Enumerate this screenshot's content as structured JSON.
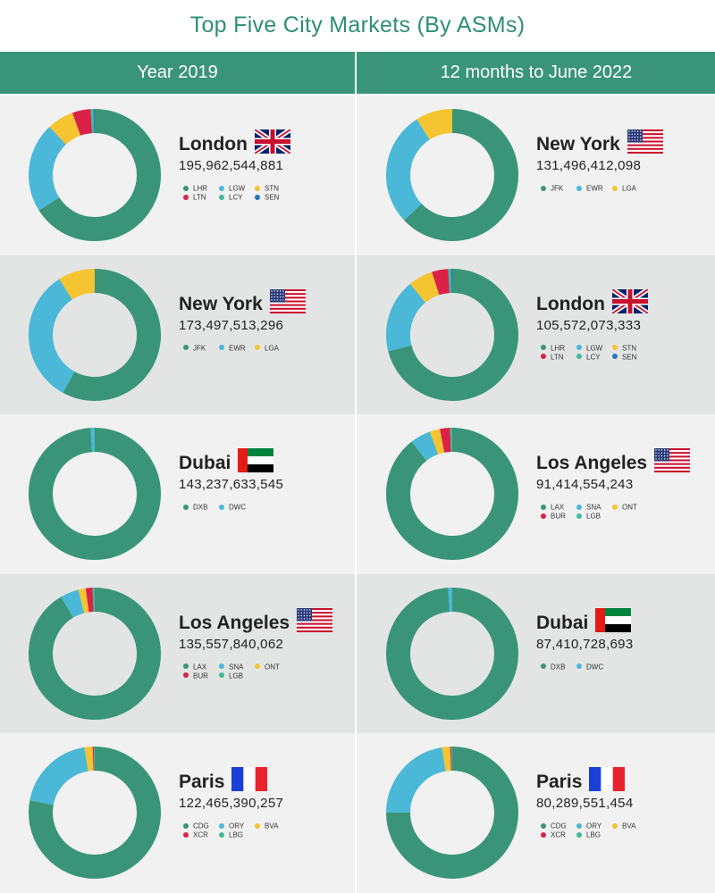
{
  "title": "Top Five City Markets (By ASMs)",
  "columns": [
    "Year 2019",
    "12 months to June 2022"
  ],
  "colors": {
    "header": "#3a9578",
    "title": "#2e8f73",
    "row_light": "#f0f1f0",
    "row_dark": "#e2e5e4",
    "green": "#3a9578",
    "blue": "#4ab8d6",
    "yellow": "#f4c431",
    "red": "#dc2147",
    "teal": "#41b8a0",
    "navy": "#2a76c2"
  },
  "chart_data": [
    {
      "type": "donut",
      "column": "Year 2019",
      "rank": 1,
      "city": "London",
      "flag": "uk",
      "total": "195,962,544,881",
      "segments": [
        {
          "label": "LHR",
          "value": 66.0,
          "color": "#3a9578"
        },
        {
          "label": "LGW",
          "value": 22.0,
          "color": "#4ab8d6"
        },
        {
          "label": "STN",
          "value": 6.5,
          "color": "#f4c431"
        },
        {
          "label": "LTN",
          "value": 4.5,
          "color": "#dc2147"
        },
        {
          "label": "LCY",
          "value": 0.7,
          "color": "#41b8a0"
        },
        {
          "label": "SEN",
          "value": 0.3,
          "color": "#2a76c2"
        }
      ]
    },
    {
      "type": "donut",
      "column": "Year 2019",
      "rank": 2,
      "city": "New York",
      "flag": "us",
      "total": "173,497,513,296",
      "segments": [
        {
          "label": "JFK",
          "value": 58.0,
          "color": "#3a9578"
        },
        {
          "label": "EWR",
          "value": 33.0,
          "color": "#4ab8d6"
        },
        {
          "label": "LGA",
          "value": 9.0,
          "color": "#f4c431"
        }
      ]
    },
    {
      "type": "donut",
      "column": "Year 2019",
      "rank": 3,
      "city": "Dubai",
      "flag": "uae",
      "total": "143,237,633,545",
      "segments": [
        {
          "label": "DXB",
          "value": 99.0,
          "color": "#3a9578"
        },
        {
          "label": "DWC",
          "value": 1.0,
          "color": "#4ab8d6"
        }
      ]
    },
    {
      "type": "donut",
      "column": "Year 2019",
      "rank": 4,
      "city": "Los Angeles",
      "flag": "us",
      "total": "135,557,840,062",
      "segments": [
        {
          "label": "LAX",
          "value": 91.5,
          "color": "#3a9578"
        },
        {
          "label": "SNA",
          "value": 4.5,
          "color": "#4ab8d6"
        },
        {
          "label": "ONT",
          "value": 1.8,
          "color": "#f4c431"
        },
        {
          "label": "BUR",
          "value": 1.7,
          "color": "#dc2147"
        },
        {
          "label": "LGB",
          "value": 0.5,
          "color": "#41b8a0"
        }
      ]
    },
    {
      "type": "donut",
      "column": "Year 2019",
      "rank": 5,
      "city": "Paris",
      "flag": "fr",
      "total": "122,465,390,257",
      "segments": [
        {
          "label": "CDG",
          "value": 78.0,
          "color": "#3a9578"
        },
        {
          "label": "ORY",
          "value": 19.5,
          "color": "#4ab8d6"
        },
        {
          "label": "BVA",
          "value": 2.0,
          "color": "#f4c431"
        },
        {
          "label": "XCR",
          "value": 0.3,
          "color": "#dc2147"
        },
        {
          "label": "LBG",
          "value": 0.2,
          "color": "#41b8a0"
        }
      ]
    },
    {
      "type": "donut",
      "column": "12 months to June 2022",
      "rank": 1,
      "city": "New York",
      "flag": "us",
      "total": "131,496,412,098",
      "segments": [
        {
          "label": "JFK",
          "value": 63.0,
          "color": "#3a9578"
        },
        {
          "label": "EWR",
          "value": 28.0,
          "color": "#4ab8d6"
        },
        {
          "label": "LGA",
          "value": 9.0,
          "color": "#f4c431"
        }
      ]
    },
    {
      "type": "donut",
      "column": "12 months to June 2022",
      "rank": 2,
      "city": "London",
      "flag": "uk",
      "total": "105,572,073,333",
      "segments": [
        {
          "label": "LHR",
          "value": 71.0,
          "color": "#3a9578"
        },
        {
          "label": "LGW",
          "value": 18.0,
          "color": "#4ab8d6"
        },
        {
          "label": "STN",
          "value": 6.0,
          "color": "#f4c431"
        },
        {
          "label": "LTN",
          "value": 4.0,
          "color": "#dc2147"
        },
        {
          "label": "LCY",
          "value": 0.7,
          "color": "#41b8a0"
        },
        {
          "label": "SEN",
          "value": 0.3,
          "color": "#2a76c2"
        }
      ]
    },
    {
      "type": "donut",
      "column": "12 months to June 2022",
      "rank": 3,
      "city": "Los Angeles",
      "flag": "us",
      "total": "91,414,554,243",
      "segments": [
        {
          "label": "LAX",
          "value": 89.5,
          "color": "#3a9578"
        },
        {
          "label": "SNA",
          "value": 5.0,
          "color": "#4ab8d6"
        },
        {
          "label": "ONT",
          "value": 2.5,
          "color": "#f4c431"
        },
        {
          "label": "BUR",
          "value": 2.5,
          "color": "#dc2147"
        },
        {
          "label": "LGB",
          "value": 0.5,
          "color": "#41b8a0"
        }
      ]
    },
    {
      "type": "donut",
      "column": "12 months to June 2022",
      "rank": 4,
      "city": "Dubai",
      "flag": "uae",
      "total": "87,410,728,693",
      "segments": [
        {
          "label": "DXB",
          "value": 99.0,
          "color": "#3a9578"
        },
        {
          "label": "DWC",
          "value": 1.0,
          "color": "#4ab8d6"
        }
      ]
    },
    {
      "type": "donut",
      "column": "12 months to June 2022",
      "rank": 5,
      "city": "Paris",
      "flag": "fr",
      "total": "80,289,551,454",
      "segments": [
        {
          "label": "CDG",
          "value": 75.0,
          "color": "#3a9578"
        },
        {
          "label": "ORY",
          "value": 22.5,
          "color": "#4ab8d6"
        },
        {
          "label": "BVA",
          "value": 2.0,
          "color": "#f4c431"
        },
        {
          "label": "XCR",
          "value": 0.3,
          "color": "#dc2147"
        },
        {
          "label": "LBG",
          "value": 0.2,
          "color": "#41b8a0"
        }
      ]
    }
  ]
}
